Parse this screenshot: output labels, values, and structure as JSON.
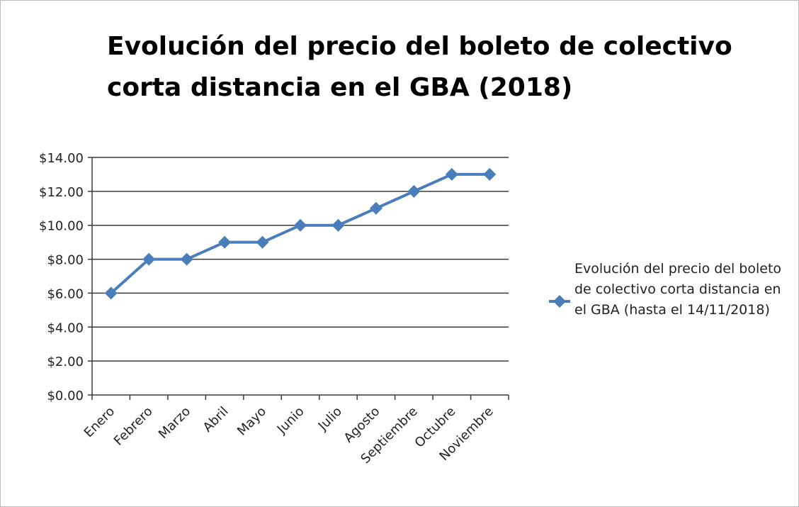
{
  "chart_data": {
    "type": "line",
    "title": "Evolución del precio del boleto de colectivo corta distancia en el GBA (2018)",
    "categories": [
      "Enero",
      "Febrero",
      "Marzo",
      "Abril",
      "Mayo",
      "Junio",
      "Julio",
      "Agosto",
      "Septiembre",
      "Octubre",
      "Noviembre"
    ],
    "series": [
      {
        "name": "Evolución del precio del boleto de colectivo corta distancia en el GBA (hasta el 14/11/2018)",
        "color": "#4a7ebb",
        "values": [
          6,
          8,
          8,
          9,
          9,
          10,
          10,
          11,
          12,
          13,
          13
        ]
      }
    ],
    "ylim": [
      0,
      14
    ],
    "yticks": [
      {
        "value": 0,
        "label": "$0.00"
      },
      {
        "value": 2,
        "label": "$2.00"
      },
      {
        "value": 4,
        "label": "$4.00"
      },
      {
        "value": 6,
        "label": "$6.00"
      },
      {
        "value": 8,
        "label": "$8.00"
      },
      {
        "value": 10,
        "label": "$10.00"
      },
      {
        "value": 12,
        "label": "$12.00"
      },
      {
        "value": 14,
        "label": "$14.00"
      }
    ],
    "grid": true,
    "legend": "right"
  }
}
